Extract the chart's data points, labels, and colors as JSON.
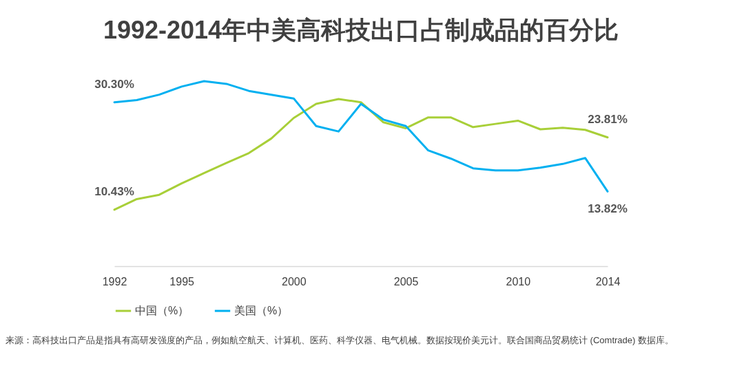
{
  "chart_data": {
    "type": "line",
    "title": "1992-2014年中美高科技出口占制成品的百分比",
    "x": [
      1992,
      1993,
      1994,
      1995,
      1996,
      1997,
      1998,
      1999,
      2000,
      2001,
      2002,
      2003,
      2004,
      2005,
      2006,
      2007,
      2008,
      2009,
      2010,
      2011,
      2012,
      2013,
      2014
    ],
    "series": [
      {
        "name": "中国（%）",
        "color": "#a8cf38",
        "values": [
          10.43,
          12.4,
          13.2,
          15.3,
          17.2,
          19.1,
          20.9,
          23.6,
          27.4,
          30.0,
          30.9,
          30.3,
          26.6,
          25.5,
          27.5,
          27.5,
          25.7,
          26.3,
          26.9,
          25.3,
          25.6,
          25.2,
          23.81
        ],
        "value_labels": [
          "10.43%",
          null,
          null,
          null,
          null,
          null,
          null,
          null,
          null,
          null,
          null,
          null,
          null,
          null,
          null,
          null,
          null,
          null,
          null,
          null,
          null,
          null,
          "23.81%"
        ]
      },
      {
        "name": "美国（%）",
        "color": "#00b0f0",
        "values": [
          30.3,
          30.7,
          31.7,
          33.2,
          34.2,
          33.7,
          32.4,
          31.7,
          31.0,
          25.9,
          24.9,
          30.0,
          27.1,
          25.9,
          21.4,
          19.9,
          18.1,
          17.7,
          17.7,
          18.2,
          18.9,
          20.0,
          13.82
        ],
        "value_labels": [
          "30.30%",
          null,
          null,
          null,
          null,
          null,
          null,
          null,
          null,
          null,
          null,
          null,
          null,
          null,
          null,
          null,
          null,
          null,
          null,
          null,
          null,
          null,
          "13.82%"
        ]
      }
    ],
    "xlim": [
      1992,
      2014
    ],
    "xticks": [
      1992,
      1995,
      2000,
      2005,
      2010,
      2014
    ],
    "tick_labels": "x",
    "legend": "bottom",
    "annotations": [
      "来源：高科技出口产品是指具有高研发强度的产品，例如航空航天、计算机、医药、科学仪器、电气机械。数据按现价美元计。联合国商品贸易统计 (Comtrade) 数据库。"
    ]
  }
}
